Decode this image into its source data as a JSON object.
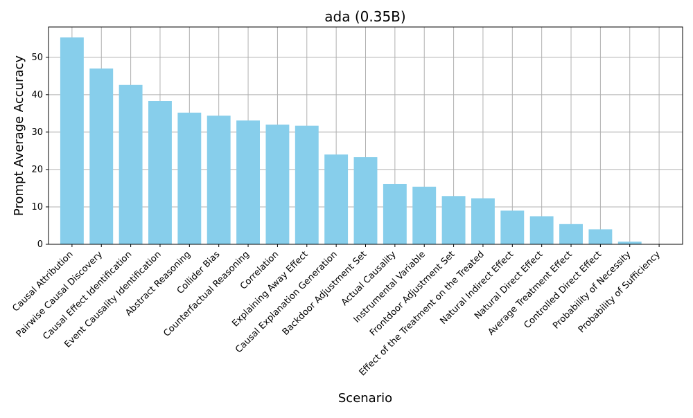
{
  "chart_data": {
    "type": "bar",
    "title": "ada (0.35B)",
    "xlabel": "Scenario",
    "ylabel": "Prompt Average Accuracy",
    "categories": [
      "Causal Attribution",
      "Pairwise Causal Discovery",
      "Causal Effect Identification",
      "Event Causality Identification",
      "Abstract Reasoning",
      "Collider Bias",
      "Counterfactual Reasoning",
      "Correlation",
      "Explaining Away Effect",
      "Causal Explanation Generation",
      "Backdoor Adjustment Set",
      "Actual Causality",
      "Instrumental Variable",
      "Frontdoor Adjustment Set",
      "Effect of the Treatment on the Treated",
      "Natural Indirect Effect",
      "Natural Direct Effect",
      "Average Treatment Effect",
      "Controlled Direct Effect",
      "Probability of Necessity",
      "Probability of Sufficiency"
    ],
    "values": [
      55.3,
      47.0,
      42.6,
      38.3,
      35.2,
      34.4,
      33.1,
      32.0,
      31.7,
      24.0,
      23.3,
      16.1,
      15.4,
      12.9,
      12.3,
      9.0,
      7.5,
      5.4,
      4.0,
      0.7,
      0.0
    ],
    "ylim": [
      0,
      58.1
    ],
    "yticks": [
      "0",
      "10",
      "20",
      "30",
      "40",
      "50"
    ],
    "grid": true,
    "bar_color": "#87ceeb",
    "grid_color": "#b0b0b0"
  }
}
